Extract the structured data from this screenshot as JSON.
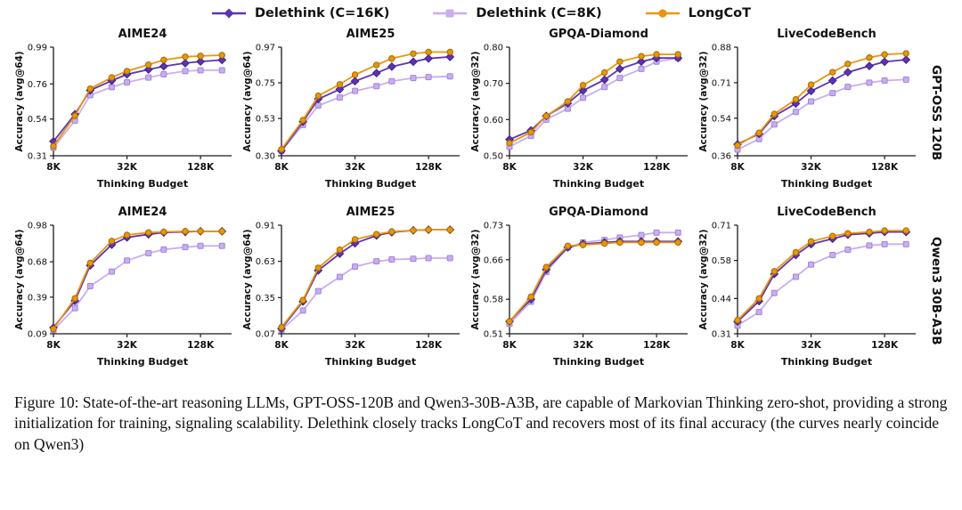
{
  "colors": {
    "axis": "#1a1a1a",
    "delethink_16k": "#5c33b5",
    "delethink_16k_edge": "#3f2380",
    "delethink_8k": "#c9aef0",
    "delethink_8k_edge": "#a184d8",
    "longcot": "#e8960d",
    "longcot_edge": "#a86a00"
  },
  "legend": {
    "items": [
      {
        "label": "Delethink (C=16K)",
        "marker": "diamond",
        "color_key": "delethink_16k"
      },
      {
        "label": "Delethink (C=8K)",
        "marker": "square",
        "color_key": "delethink_8k"
      },
      {
        "label": "LongCoT",
        "marker": "circle",
        "color_key": "longcot"
      }
    ]
  },
  "caption": "Figure 10: State-of-the-art reasoning LLMs, GPT-OSS-120B and Qwen3-30B-A3B, are capable of Markovian Thinking zero-shot, providing a strong initialization for training, signaling scalability. Delethink closely tracks LongCoT and recovers most of its final accuracy (the curves nearly coincide on Qwen3)",
  "chart_data": [
    {
      "row_label": "GPT-OSS 120B",
      "charts": [
        {
          "type": "line",
          "title": "AIME24",
          "xlabel": "Thinking Budget",
          "ylabel": "Accuracy (avg@64)",
          "x": [
            8000,
            12000,
            16000,
            24000,
            32000,
            48000,
            64000,
            96000,
            128000,
            192000
          ],
          "xticks": [
            8000,
            32000,
            128000
          ],
          "xtick_labels": [
            "8K",
            "32K",
            "128K"
          ],
          "xscale": "log",
          "ylim": [
            0.31,
            0.99
          ],
          "yticks": [
            0.31,
            0.54,
            0.76,
            0.99
          ],
          "series": [
            {
              "name": "Delethink (C=8K)",
              "marker": "square",
              "color": "delethink_8k",
              "values": [
                0.36,
                0.53,
                0.69,
                0.74,
                0.77,
                0.8,
                0.82,
                0.84,
                0.845,
                0.845
              ]
            },
            {
              "name": "Delethink (C=16K)",
              "marker": "diamond",
              "color": "delethink_16k",
              "values": [
                0.4,
                0.57,
                0.72,
                0.78,
                0.82,
                0.85,
                0.87,
                0.89,
                0.9,
                0.91
              ]
            },
            {
              "name": "LongCoT",
              "marker": "circle",
              "color": "longcot",
              "values": [
                0.37,
                0.56,
                0.73,
                0.8,
                0.84,
                0.88,
                0.91,
                0.93,
                0.935,
                0.94
              ]
            }
          ]
        },
        {
          "type": "line",
          "title": "AIME25",
          "xlabel": "Thinking Budget",
          "ylabel": "Accuracy (avg@64)",
          "x": [
            8000,
            12000,
            16000,
            24000,
            32000,
            48000,
            64000,
            96000,
            128000,
            192000
          ],
          "xticks": [
            8000,
            32000,
            128000
          ],
          "xtick_labels": [
            "8K",
            "32K",
            "128K"
          ],
          "xscale": "log",
          "ylim": [
            0.3,
            0.97
          ],
          "yticks": [
            0.3,
            0.53,
            0.75,
            0.97
          ],
          "series": [
            {
              "name": "Delethink (C=8K)",
              "marker": "square",
              "color": "delethink_8k",
              "values": [
                0.33,
                0.49,
                0.61,
                0.66,
                0.7,
                0.73,
                0.76,
                0.78,
                0.785,
                0.79
              ]
            },
            {
              "name": "Delethink (C=16K)",
              "marker": "diamond",
              "color": "delethink_16k",
              "values": [
                0.33,
                0.51,
                0.65,
                0.71,
                0.76,
                0.81,
                0.85,
                0.88,
                0.9,
                0.91
              ]
            },
            {
              "name": "LongCoT",
              "marker": "circle",
              "color": "longcot",
              "values": [
                0.34,
                0.52,
                0.67,
                0.74,
                0.8,
                0.86,
                0.9,
                0.93,
                0.94,
                0.94
              ]
            }
          ]
        },
        {
          "type": "line",
          "title": "GPQA-Diamond",
          "xlabel": "Thinking Budget",
          "ylabel": "Accuracy (avg@32)",
          "x": [
            8000,
            12000,
            16000,
            24000,
            32000,
            48000,
            64000,
            96000,
            128000,
            192000
          ],
          "xticks": [
            8000,
            32000,
            128000
          ],
          "xtick_labels": [
            "8K",
            "32K",
            "128K"
          ],
          "xscale": "log",
          "ylim": [
            0.5,
            0.8
          ],
          "yticks": [
            0.5,
            0.6,
            0.7,
            0.8
          ],
          "series": [
            {
              "name": "Delethink (C=8K)",
              "marker": "square",
              "color": "delethink_8k",
              "values": [
                0.525,
                0.555,
                0.6,
                0.63,
                0.66,
                0.69,
                0.715,
                0.74,
                0.76,
                0.77
              ]
            },
            {
              "name": "Delethink (C=16K)",
              "marker": "diamond",
              "color": "delethink_16k",
              "values": [
                0.545,
                0.57,
                0.61,
                0.645,
                0.68,
                0.71,
                0.74,
                0.76,
                0.77,
                0.77
              ]
            },
            {
              "name": "LongCoT",
              "marker": "circle",
              "color": "longcot",
              "values": [
                0.535,
                0.565,
                0.61,
                0.65,
                0.695,
                0.73,
                0.76,
                0.775,
                0.78,
                0.78
              ]
            }
          ]
        },
        {
          "type": "line",
          "title": "LiveCodeBench",
          "xlabel": "Thinking Budget",
          "ylabel": "Accuracy (avg@32)",
          "x": [
            8000,
            12000,
            16000,
            24000,
            32000,
            48000,
            64000,
            96000,
            128000,
            192000
          ],
          "xticks": [
            8000,
            32000,
            128000
          ],
          "xtick_labels": [
            "8K",
            "32K",
            "128K"
          ],
          "xscale": "log",
          "ylim": [
            0.36,
            0.88
          ],
          "yticks": [
            0.36,
            0.54,
            0.71,
            0.88
          ],
          "series": [
            {
              "name": "Delethink (C=8K)",
              "marker": "square",
              "color": "delethink_8k",
              "values": [
                0.39,
                0.44,
                0.51,
                0.57,
                0.62,
                0.66,
                0.69,
                0.71,
                0.72,
                0.725
              ]
            },
            {
              "name": "Delethink (C=16K)",
              "marker": "diamond",
              "color": "delethink_16k",
              "values": [
                0.415,
                0.465,
                0.55,
                0.61,
                0.67,
                0.72,
                0.76,
                0.79,
                0.81,
                0.82
              ]
            },
            {
              "name": "LongCoT",
              "marker": "circle",
              "color": "longcot",
              "values": [
                0.41,
                0.47,
                0.56,
                0.63,
                0.7,
                0.76,
                0.8,
                0.83,
                0.845,
                0.85
              ]
            }
          ]
        }
      ]
    },
    {
      "row_label": "Qwen3 30B-A3B",
      "charts": [
        {
          "type": "line",
          "title": "AIME24",
          "xlabel": "Thinking Budget",
          "ylabel": "Accuracy (avg@64)",
          "x": [
            8000,
            12000,
            16000,
            24000,
            32000,
            48000,
            64000,
            96000,
            128000,
            192000
          ],
          "xticks": [
            8000,
            32000,
            128000
          ],
          "xtick_labels": [
            "8K",
            "32K",
            "128K"
          ],
          "xscale": "log",
          "ylim": [
            0.09,
            0.98
          ],
          "yticks": [
            0.09,
            0.39,
            0.68,
            0.98
          ],
          "series": [
            {
              "name": "Delethink (C=8K)",
              "marker": "square",
              "color": "delethink_8k",
              "values": [
                0.12,
                0.3,
                0.48,
                0.6,
                0.69,
                0.75,
                0.78,
                0.8,
                0.81,
                0.81
              ]
            },
            {
              "name": "Delethink (C=16K)",
              "marker": "diamond",
              "color": "delethink_16k",
              "values": [
                0.14,
                0.36,
                0.65,
                0.82,
                0.88,
                0.905,
                0.92,
                0.925,
                0.93,
                0.93
              ]
            },
            {
              "name": "LongCoT",
              "marker": "circle",
              "color": "longcot",
              "values": [
                0.13,
                0.38,
                0.67,
                0.85,
                0.9,
                0.92,
                0.925,
                0.93,
                0.93,
                0.93
              ]
            }
          ]
        },
        {
          "type": "line",
          "title": "AIME25",
          "xlabel": "Thinking Budget",
          "ylabel": "Accuracy (avg@64)",
          "x": [
            8000,
            12000,
            16000,
            24000,
            32000,
            48000,
            64000,
            96000,
            128000,
            192000
          ],
          "xticks": [
            8000,
            32000,
            128000
          ],
          "xtick_labels": [
            "8K",
            "32K",
            "128K"
          ],
          "xscale": "log",
          "ylim": [
            0.07,
            0.91
          ],
          "yticks": [
            0.07,
            0.35,
            0.63,
            0.91
          ],
          "series": [
            {
              "name": "Delethink (C=8K)",
              "marker": "square",
              "color": "delethink_8k",
              "values": [
                0.1,
                0.25,
                0.4,
                0.51,
                0.59,
                0.63,
                0.645,
                0.65,
                0.655,
                0.655
              ]
            },
            {
              "name": "Delethink (C=16K)",
              "marker": "diamond",
              "color": "delethink_16k",
              "values": [
                0.11,
                0.32,
                0.56,
                0.69,
                0.77,
                0.83,
                0.855,
                0.87,
                0.875,
                0.875
              ]
            },
            {
              "name": "LongCoT",
              "marker": "circle",
              "color": "longcot",
              "values": [
                0.12,
                0.33,
                0.58,
                0.72,
                0.8,
                0.84,
                0.86,
                0.87,
                0.875,
                0.875
              ]
            }
          ]
        },
        {
          "type": "line",
          "title": "GPQA-Diamond",
          "xlabel": "Thinking Budget",
          "ylabel": "Accuracy (avg@32)",
          "x": [
            8000,
            12000,
            16000,
            24000,
            32000,
            48000,
            64000,
            96000,
            128000,
            192000
          ],
          "xticks": [
            8000,
            32000,
            128000
          ],
          "xtick_labels": [
            "8K",
            "32K",
            "128K"
          ],
          "xscale": "log",
          "ylim": [
            0.51,
            0.73
          ],
          "yticks": [
            0.51,
            0.58,
            0.66,
            0.73
          ],
          "series": [
            {
              "name": "Delethink (C=8K)",
              "marker": "square",
              "color": "delethink_8k",
              "values": [
                0.53,
                0.575,
                0.635,
                0.685,
                0.695,
                0.7,
                0.705,
                0.71,
                0.715,
                0.715
              ]
            },
            {
              "name": "Delethink (C=16K)",
              "marker": "diamond",
              "color": "delethink_16k",
              "values": [
                0.535,
                0.58,
                0.64,
                0.685,
                0.692,
                0.695,
                0.697,
                0.697,
                0.697,
                0.697
              ]
            },
            {
              "name": "LongCoT",
              "marker": "circle",
              "color": "longcot",
              "values": [
                0.535,
                0.585,
                0.645,
                0.688,
                0.69,
                0.693,
                0.695,
                0.695,
                0.695,
                0.695
              ]
            }
          ]
        },
        {
          "type": "line",
          "title": "LiveCodeBench",
          "xlabel": "Thinking Budget",
          "ylabel": "Accuracy (avg@32)",
          "x": [
            8000,
            12000,
            16000,
            24000,
            32000,
            48000,
            64000,
            96000,
            128000,
            192000
          ],
          "xticks": [
            8000,
            32000,
            128000
          ],
          "xtick_labels": [
            "8K",
            "32K",
            "128K"
          ],
          "xscale": "log",
          "ylim": [
            0.31,
            0.71
          ],
          "yticks": [
            0.31,
            0.44,
            0.58,
            0.71
          ],
          "series": [
            {
              "name": "Delethink (C=8K)",
              "marker": "square",
              "color": "delethink_8k",
              "values": [
                0.34,
                0.39,
                0.46,
                0.52,
                0.565,
                0.6,
                0.62,
                0.635,
                0.64,
                0.64
              ]
            },
            {
              "name": "Delethink (C=16K)",
              "marker": "diamond",
              "color": "delethink_16k",
              "values": [
                0.355,
                0.43,
                0.53,
                0.6,
                0.64,
                0.66,
                0.675,
                0.68,
                0.685,
                0.685
              ]
            },
            {
              "name": "LongCoT",
              "marker": "circle",
              "color": "longcot",
              "values": [
                0.36,
                0.44,
                0.54,
                0.61,
                0.65,
                0.67,
                0.68,
                0.685,
                0.69,
                0.69
              ]
            }
          ]
        }
      ]
    }
  ]
}
